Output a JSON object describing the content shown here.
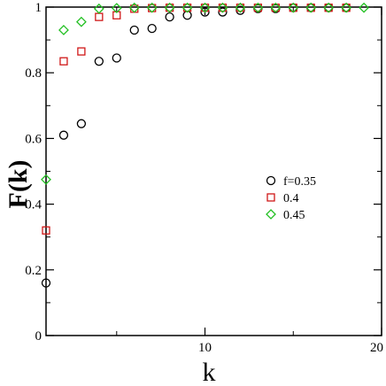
{
  "chart_data": {
    "type": "scatter",
    "title": "",
    "xlabel": "k",
    "ylabel": "F(k)",
    "xlim": [
      1,
      20
    ],
    "ylim": [
      0,
      1
    ],
    "x_ticks": [
      10,
      20
    ],
    "x_tick_labels": [
      "10",
      "20"
    ],
    "y_ticks": [
      0,
      0.2,
      0.4,
      0.6,
      0.8,
      1
    ],
    "y_tick_labels": [
      "0",
      "0.2",
      "0.4",
      "0.6",
      "0.8",
      "1"
    ],
    "grid": false,
    "legend_position": "right",
    "series": [
      {
        "name": "f=0.35",
        "marker": "circle",
        "color": "#000000",
        "x": [
          1,
          2,
          3,
          4,
          5,
          6,
          7,
          8,
          9,
          10,
          11,
          12,
          13,
          14,
          15,
          16,
          17,
          18
        ],
        "y": [
          0.16,
          0.61,
          0.645,
          0.835,
          0.845,
          0.93,
          0.935,
          0.97,
          0.975,
          0.985,
          0.985,
          0.99,
          0.995,
          0.995,
          0.998,
          0.998,
          0.998,
          0.998
        ]
      },
      {
        "name": "0.4",
        "marker": "square",
        "color": "#d01818",
        "x": [
          1,
          2,
          3,
          4,
          5,
          6,
          7,
          8,
          9,
          10,
          11,
          12,
          13,
          14,
          15,
          16,
          17,
          18
        ],
        "y": [
          0.32,
          0.835,
          0.865,
          0.97,
          0.975,
          0.995,
          0.997,
          0.998,
          0.998,
          0.998,
          0.998,
          0.998,
          0.998,
          0.998,
          0.998,
          0.998,
          0.998,
          0.998
        ]
      },
      {
        "name": "0.45",
        "marker": "diamond",
        "color": "#22c022",
        "x": [
          1,
          2,
          3,
          4,
          5,
          6,
          7,
          8,
          9,
          10,
          11,
          12,
          13,
          14,
          15,
          16,
          17,
          18,
          19
        ],
        "y": [
          0.475,
          0.93,
          0.955,
          0.995,
          0.997,
          0.998,
          0.998,
          0.998,
          0.998,
          0.998,
          0.998,
          0.998,
          0.998,
          0.998,
          0.998,
          0.998,
          0.998,
          0.998,
          0.998
        ]
      }
    ]
  }
}
